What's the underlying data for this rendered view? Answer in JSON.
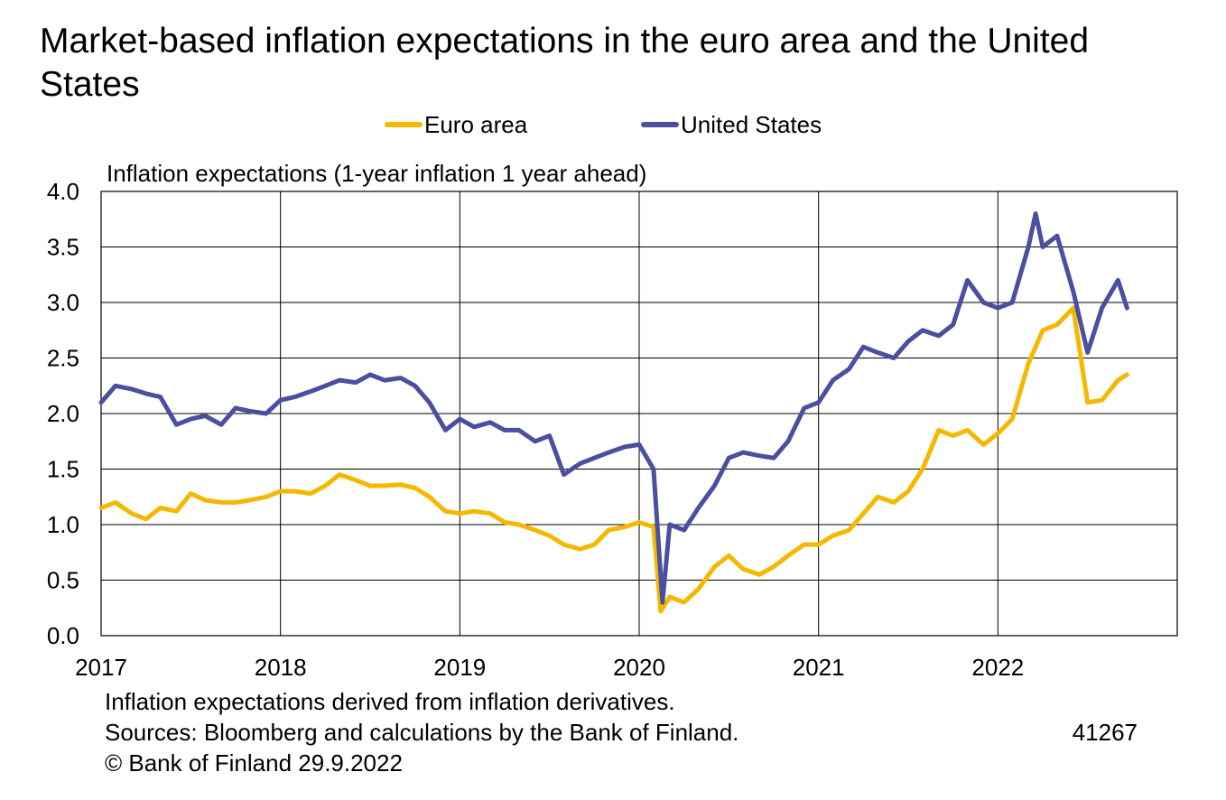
{
  "title": "Market-based inflation expectations in the euro area and the United States",
  "unit_label": "Inflation expectations (1-year inflation 1 year ahead)",
  "notes": [
    "Inflation expectations derived from inflation derivatives.",
    "Sources: Bloomberg and calculations by the Bank of Finland.",
    "© Bank of Finland 29.9.2022"
  ],
  "chart_id": "41267",
  "colors": {
    "euro_area": "#F5B800",
    "united_states": "#4A4F9F",
    "grid": "#000000"
  },
  "chart_data": {
    "type": "line",
    "title": "Market-based inflation expectations in the euro area and the United States",
    "ylabel": "Inflation expectations (1-year inflation 1 year ahead)",
    "xlabel": "",
    "ylim": [
      0.0,
      4.0
    ],
    "yticks": [
      "0.0",
      "0.5",
      "1.0",
      "1.5",
      "2.0",
      "2.5",
      "3.0",
      "3.5",
      "4.0"
    ],
    "xlim": [
      2017.0,
      2023.0
    ],
    "xticks": [
      "2017",
      "2018",
      "2019",
      "2020",
      "2021",
      "2022"
    ],
    "grid": true,
    "legend_position": "top",
    "series": [
      {
        "name": "Euro area",
        "x": [
          2017.0,
          2017.08,
          2017.17,
          2017.25,
          2017.33,
          2017.42,
          2017.5,
          2017.58,
          2017.67,
          2017.75,
          2017.83,
          2017.92,
          2018.0,
          2018.08,
          2018.17,
          2018.25,
          2018.33,
          2018.42,
          2018.5,
          2018.58,
          2018.67,
          2018.75,
          2018.83,
          2018.92,
          2019.0,
          2019.08,
          2019.17,
          2019.25,
          2019.33,
          2019.42,
          2019.5,
          2019.58,
          2019.67,
          2019.75,
          2019.83,
          2019.92,
          2020.0,
          2020.08,
          2020.12,
          2020.17,
          2020.25,
          2020.33,
          2020.42,
          2020.5,
          2020.58,
          2020.67,
          2020.75,
          2020.83,
          2020.92,
          2021.0,
          2021.08,
          2021.17,
          2021.25,
          2021.33,
          2021.42,
          2021.5,
          2021.58,
          2021.67,
          2021.75,
          2021.83,
          2021.92,
          2022.0,
          2022.08,
          2022.17,
          2022.25,
          2022.33,
          2022.42,
          2022.5,
          2022.58,
          2022.67,
          2022.72
        ],
        "values": [
          1.15,
          1.2,
          1.1,
          1.05,
          1.15,
          1.12,
          1.28,
          1.22,
          1.2,
          1.2,
          1.22,
          1.25,
          1.3,
          1.3,
          1.28,
          1.35,
          1.45,
          1.4,
          1.35,
          1.35,
          1.36,
          1.33,
          1.25,
          1.12,
          1.1,
          1.12,
          1.1,
          1.02,
          1.0,
          0.95,
          0.9,
          0.82,
          0.78,
          0.82,
          0.95,
          0.98,
          1.02,
          0.98,
          0.22,
          0.35,
          0.3,
          0.42,
          0.62,
          0.72,
          0.6,
          0.55,
          0.62,
          0.72,
          0.82,
          0.82,
          0.9,
          0.95,
          1.1,
          1.25,
          1.2,
          1.3,
          1.5,
          1.85,
          1.8,
          1.85,
          1.72,
          1.82,
          1.95,
          2.45,
          2.75,
          2.8,
          2.95,
          2.1,
          2.12,
          2.3,
          2.35
        ]
      },
      {
        "name": "United States",
        "x": [
          2017.0,
          2017.08,
          2017.17,
          2017.25,
          2017.33,
          2017.42,
          2017.5,
          2017.58,
          2017.67,
          2017.75,
          2017.83,
          2017.92,
          2018.0,
          2018.08,
          2018.17,
          2018.25,
          2018.33,
          2018.42,
          2018.5,
          2018.58,
          2018.67,
          2018.75,
          2018.83,
          2018.92,
          2019.0,
          2019.08,
          2019.17,
          2019.25,
          2019.33,
          2019.42,
          2019.5,
          2019.58,
          2019.67,
          2019.75,
          2019.83,
          2019.92,
          2020.0,
          2020.08,
          2020.13,
          2020.17,
          2020.25,
          2020.33,
          2020.42,
          2020.5,
          2020.58,
          2020.67,
          2020.75,
          2020.83,
          2020.92,
          2021.0,
          2021.08,
          2021.17,
          2021.25,
          2021.33,
          2021.42,
          2021.5,
          2021.58,
          2021.67,
          2021.75,
          2021.83,
          2021.92,
          2022.0,
          2022.08,
          2022.17,
          2022.21,
          2022.25,
          2022.33,
          2022.42,
          2022.5,
          2022.58,
          2022.67,
          2022.72
        ],
        "values": [
          2.1,
          2.25,
          2.22,
          2.18,
          2.15,
          1.9,
          1.95,
          1.98,
          1.9,
          2.05,
          2.02,
          2.0,
          2.12,
          2.15,
          2.2,
          2.25,
          2.3,
          2.28,
          2.35,
          2.3,
          2.32,
          2.25,
          2.1,
          1.85,
          1.95,
          1.88,
          1.92,
          1.85,
          1.85,
          1.75,
          1.8,
          1.45,
          1.55,
          1.6,
          1.65,
          1.7,
          1.72,
          1.5,
          0.3,
          1.0,
          0.95,
          1.15,
          1.35,
          1.6,
          1.65,
          1.62,
          1.6,
          1.75,
          2.05,
          2.1,
          2.3,
          2.4,
          2.6,
          2.55,
          2.5,
          2.65,
          2.75,
          2.7,
          2.8,
          3.2,
          3.0,
          2.95,
          3.0,
          3.5,
          3.8,
          3.5,
          3.6,
          3.1,
          2.55,
          2.95,
          3.2,
          2.95
        ]
      }
    ]
  }
}
